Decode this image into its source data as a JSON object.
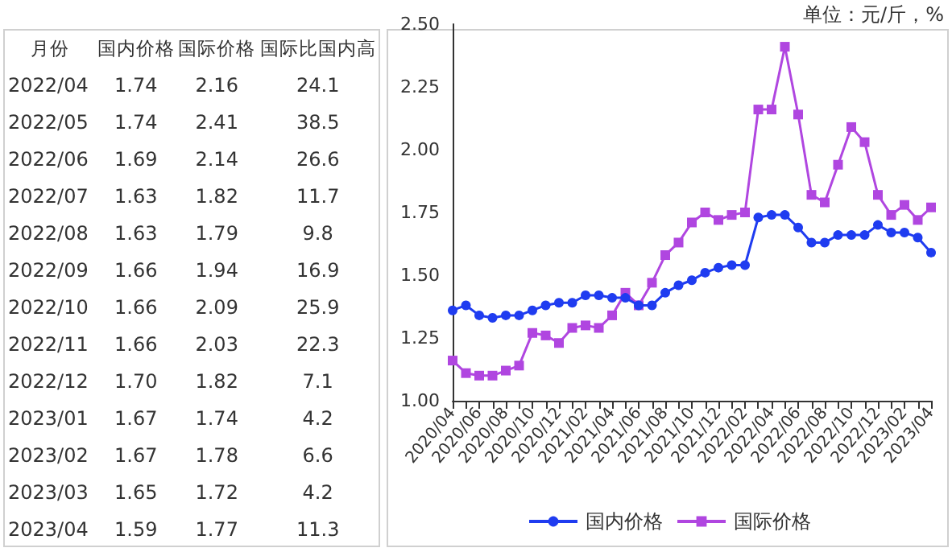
{
  "chart_data": [
    {
      "type": "other",
      "categories": [
        "月份",
        "国内价格",
        "国际价格",
        "国际比国内高"
      ],
      "annotations": [
        "2022/04",
        "1.74",
        "2.16",
        "24.1",
        "2022/05",
        "1.74",
        "2.41",
        "38.5",
        "2022/06",
        "1.69",
        "2.14",
        "26.6",
        "2022/07",
        "1.63",
        "1.82",
        "11.7",
        "2022/08",
        "1.63",
        "1.79",
        "9.8",
        "2022/09",
        "1.66",
        "1.94",
        "16.9",
        "2022/10",
        "1.66",
        "2.09",
        "25.9",
        "2022/11",
        "1.66",
        "2.03",
        "22.3",
        "2022/12",
        "1.70",
        "1.82",
        "7.1",
        "2023/01",
        "1.67",
        "1.74",
        "4.2",
        "2023/02",
        "1.67",
        "1.78",
        "6.6",
        "2023/03",
        "1.65",
        "1.72",
        "4.2",
        "2023/04",
        "1.59",
        "1.77",
        "11.3"
      ]
    },
    {
      "type": "line",
      "annotations": [
        "单位：元/斤，%"
      ],
      "categories": [
        "2020/04",
        null,
        "2020/06",
        null,
        "2020/08",
        null,
        "2020/10",
        null,
        "2020/12",
        null,
        "2021/02",
        null,
        "2021/04",
        null,
        "2021/06",
        null,
        "2021/08",
        null,
        "2021/10",
        null,
        "2021/12",
        null,
        "2022/02",
        null,
        "2022/04",
        null,
        "2022/06",
        null,
        "2022/08",
        null,
        "2022/10",
        null,
        "2022/12",
        null,
        "2023/02",
        null,
        "2023/04"
      ],
      "series": [
        {
          "name": "国内价格",
          "color": "#1f3cf0",
          "marker": "circle",
          "values": [
            1.36,
            1.38,
            1.34,
            1.33,
            1.34,
            1.34,
            1.36,
            1.38,
            1.39,
            1.39,
            1.42,
            1.42,
            1.41,
            1.41,
            1.38,
            1.38,
            1.43,
            1.46,
            1.48,
            1.51,
            1.53,
            1.54,
            1.54,
            1.73,
            1.74,
            1.74,
            1.69,
            1.63,
            1.63,
            1.66,
            1.66,
            1.66,
            1.7,
            1.67,
            1.67,
            1.65,
            1.59
          ]
        },
        {
          "name": "国际价格",
          "color": "#b046e0",
          "marker": "square",
          "values": [
            1.16,
            1.11,
            1.1,
            1.1,
            1.12,
            1.14,
            1.27,
            1.26,
            1.23,
            1.29,
            1.3,
            1.29,
            1.34,
            1.43,
            1.38,
            1.47,
            1.58,
            1.63,
            1.71,
            1.75,
            1.72,
            1.74,
            1.75,
            2.16,
            2.16,
            2.41,
            2.14,
            1.82,
            1.79,
            1.94,
            2.09,
            2.03,
            1.82,
            1.74,
            1.78,
            1.72,
            1.77
          ]
        }
      ],
      "ylim": [
        1,
        2.5
      ],
      "yticks": [
        {
          "value": 1,
          "label": "1.00"
        },
        {
          "value": 1.25,
          "label": "1.25"
        },
        {
          "value": 1.5,
          "label": "1.50"
        },
        {
          "value": 1.75,
          "label": "1.75"
        },
        {
          "value": 2,
          "label": "2.00"
        },
        {
          "value": 2.25,
          "label": "2.25"
        },
        {
          "value": 2.5,
          "label": "2.50"
        }
      ],
      "grid": false,
      "legend": "bottom"
    }
  ]
}
